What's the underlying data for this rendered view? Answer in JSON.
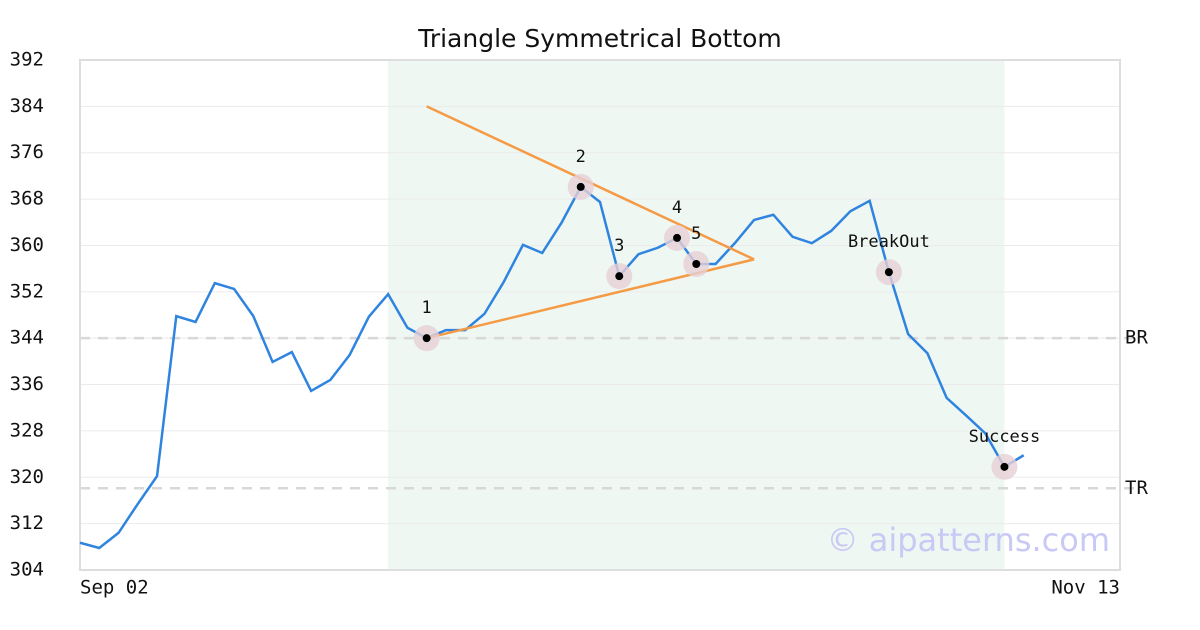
{
  "chart_data": {
    "type": "line",
    "title": "Triangle Symmetrical Bottom",
    "categories": [
      "Sep 02",
      null,
      null,
      null,
      null,
      null,
      null,
      null,
      null,
      null,
      null,
      null,
      null,
      null,
      null,
      null,
      null,
      null,
      null,
      null,
      null,
      null,
      null,
      null,
      null,
      null,
      null,
      null,
      null,
      null,
      null,
      null,
      null,
      null,
      null,
      null,
      null,
      null,
      null,
      null,
      null,
      null,
      null,
      null,
      null,
      null,
      null,
      null,
      null,
      null,
      null,
      null,
      null,
      null,
      "Nov 13"
    ],
    "series": [
      {
        "color": "#2f84e0",
        "values": [
          308.7,
          307.8,
          310.4,
          315.4,
          320.2,
          347.8,
          346.8,
          353.5,
          352.5,
          347.8,
          339.9,
          341.6,
          334.9,
          336.8,
          341.1,
          347.7,
          351.6,
          345.8,
          344.0,
          345.4,
          345.4,
          348.2,
          353.7,
          360.1,
          358.7,
          363.9,
          370.1,
          367.5,
          354.7,
          358.5,
          359.6,
          361.3,
          356.8,
          356.8,
          360.4,
          364.4,
          365.3,
          361.5,
          360.4,
          362.5,
          365.9,
          367.7,
          355.4,
          344.7,
          341.4,
          333.7,
          330.7,
          327.6,
          321.8,
          323.8,
          null,
          null,
          null,
          null,
          null
        ]
      }
    ],
    "ylim": [
      304,
      392
    ],
    "yticks": [
      304,
      312,
      320,
      328,
      336,
      344,
      352,
      360,
      368,
      376,
      384,
      392
    ],
    "grid": true,
    "highlight": [
      16,
      48
    ],
    "highlight_color": "#eef7f2",
    "trend_lines": [
      {
        "color": "#f59a45",
        "x": [
          18,
          35
        ],
        "values": [
          384.0,
          357.6
        ]
      },
      {
        "color": "#f59a45",
        "x": [
          18,
          35
        ],
        "values": [
          344.0,
          357.6
        ]
      }
    ],
    "points": [
      {
        "label": "1",
        "at": 18
      },
      {
        "label": "2",
        "at": 26
      },
      {
        "label": "3",
        "at": 28
      },
      {
        "label": "4",
        "at": 31
      },
      {
        "label": "5",
        "at": 32
      },
      {
        "label": "BreakOut",
        "at": 42
      },
      {
        "label": "Success",
        "at": 48
      }
    ],
    "ref_lines": [
      {
        "label": "BR",
        "value": 344.0
      },
      {
        "label": "TR",
        "value": 318.1
      }
    ],
    "watermark": "© aipatterns.com"
  }
}
